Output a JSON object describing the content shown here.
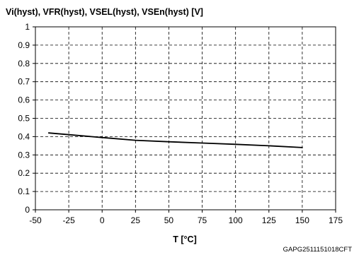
{
  "chart_data": {
    "type": "line",
    "title": "Vi(hyst), VFR(hyst), VSEL(hyst), VSEn(hyst) [V]",
    "xlabel": "T [°C]",
    "ylabel": "",
    "xlim": [
      -50,
      175
    ],
    "ylim": [
      0,
      1
    ],
    "x_ticks": [
      -50,
      -25,
      0,
      25,
      50,
      75,
      100,
      125,
      150,
      175
    ],
    "x_tick_labels": [
      "-50",
      "-25",
      "0",
      "25",
      "50",
      "75",
      "100",
      "125",
      "150",
      "175"
    ],
    "y_ticks": [
      0,
      0.1,
      0.2,
      0.3,
      0.4,
      0.5,
      0.6,
      0.7,
      0.8,
      0.9,
      1
    ],
    "y_tick_labels": [
      "0",
      "0.1",
      "0.2",
      "0.3",
      "0.4",
      "0.5",
      "0.6",
      "0.7",
      "0.8",
      "0.9",
      "1"
    ],
    "grid": "dashed",
    "legend": "none",
    "series": [
      {
        "color": "#000000",
        "x": [
          -40,
          0,
          25,
          50,
          75,
          100,
          125,
          150
        ],
        "y": [
          0.42,
          0.395,
          0.38,
          0.372,
          0.365,
          0.358,
          0.35,
          0.34
        ]
      }
    ]
  },
  "figure_code": "GAPG2511151018CFT"
}
